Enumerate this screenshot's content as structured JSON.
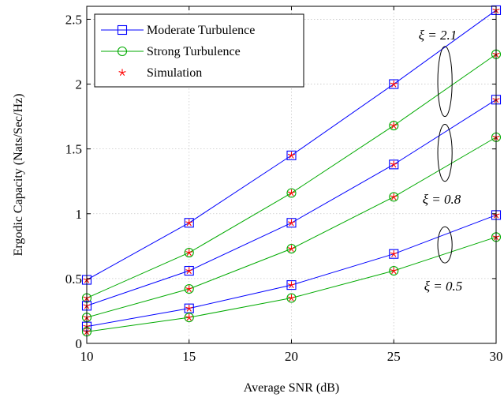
{
  "chart_data": {
    "type": "line",
    "title": "",
    "xlabel": "Average SNR (dB)",
    "ylabel": "Ergodic Capacity (Nats/Sec/Hz)",
    "x": [
      10,
      15,
      20,
      25,
      30
    ],
    "xlim": [
      10,
      30
    ],
    "ylim": [
      0,
      2.6
    ],
    "xticks": [
      10,
      15,
      20,
      25,
      30
    ],
    "yticks": [
      0,
      0.5,
      1,
      1.5,
      2,
      2.5
    ],
    "xtick_labels": [
      "10",
      "15",
      "20",
      "25",
      "30"
    ],
    "ytick_labels": [
      "0",
      "0.5",
      "1",
      "1.5",
      "2",
      "2.5"
    ],
    "grid": true,
    "legend_position": "top-left",
    "legend": [
      {
        "label": "Moderate Turbulence",
        "color": "#0000ff",
        "marker": "square"
      },
      {
        "label": "Strong Turbulence",
        "color": "#00aa00",
        "marker": "circle"
      },
      {
        "label": "Simulation",
        "color": "#ff0000",
        "marker": "star"
      }
    ],
    "series": [
      {
        "group": "xi = 2.1",
        "turbulence": "moderate",
        "color": "#0000ff",
        "marker": "square",
        "values": [
          0.49,
          0.93,
          1.45,
          2.0,
          2.57
        ]
      },
      {
        "group": "xi = 2.1",
        "turbulence": "strong",
        "color": "#00aa00",
        "marker": "circle",
        "values": [
          0.35,
          0.7,
          1.16,
          1.68,
          2.23
        ]
      },
      {
        "group": "xi = 0.8",
        "turbulence": "moderate",
        "color": "#0000ff",
        "marker": "square",
        "values": [
          0.29,
          0.56,
          0.93,
          1.38,
          1.88
        ]
      },
      {
        "group": "xi = 0.8",
        "turbulence": "strong",
        "color": "#00aa00",
        "marker": "circle",
        "values": [
          0.2,
          0.42,
          0.73,
          1.13,
          1.59
        ]
      },
      {
        "group": "xi = 0.5",
        "turbulence": "moderate",
        "color": "#0000ff",
        "marker": "square",
        "values": [
          0.13,
          0.27,
          0.45,
          0.69,
          0.99
        ]
      },
      {
        "group": "xi = 0.5",
        "turbulence": "strong",
        "color": "#00aa00",
        "marker": "circle",
        "values": [
          0.09,
          0.2,
          0.35,
          0.56,
          0.82
        ]
      }
    ],
    "annotations": [
      {
        "label": "ξ = 2.1",
        "ellipse": {
          "x": 27.5,
          "y": 2.02,
          "rx": 0.35,
          "ry": 0.27
        }
      },
      {
        "label": "ξ = 0.8",
        "ellipse": {
          "x": 27.5,
          "y": 1.47,
          "rx": 0.35,
          "ry": 0.22
        }
      },
      {
        "label": "ξ = 0.5",
        "ellipse": {
          "x": 27.5,
          "y": 0.76,
          "rx": 0.35,
          "ry": 0.14
        }
      }
    ]
  }
}
